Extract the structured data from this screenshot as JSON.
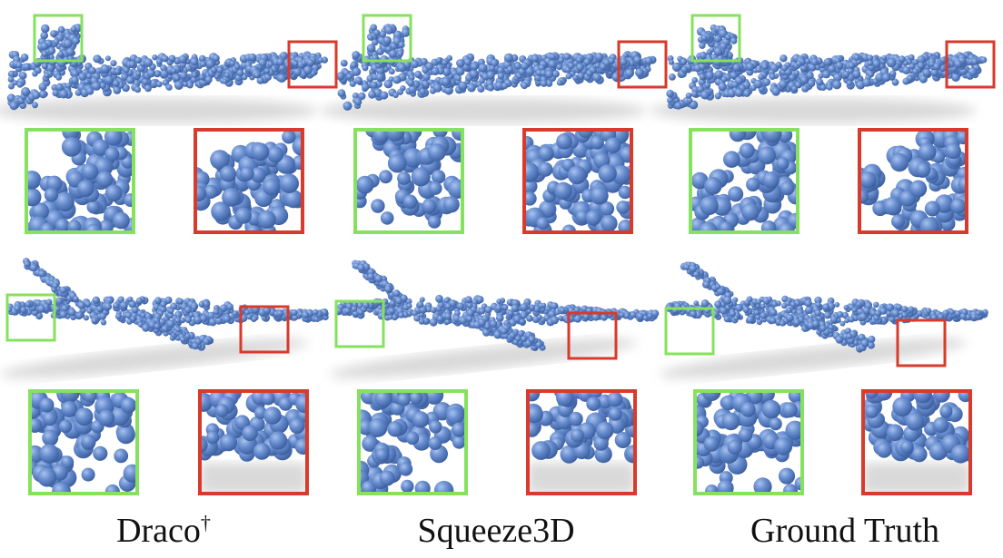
{
  "columns": [
    {
      "label": "Draco",
      "mark": "†"
    },
    {
      "label": "Squeeze3D",
      "mark": ""
    },
    {
      "label": "Ground Truth",
      "mark": ""
    }
  ],
  "colors": {
    "point": "#5f86c8",
    "point_shadow": "#3f67a8",
    "highlight": "#ffffff",
    "box_green": "#86e25e",
    "box_red": "#d83a2b",
    "ground_shadow": "#d9d9d9"
  }
}
